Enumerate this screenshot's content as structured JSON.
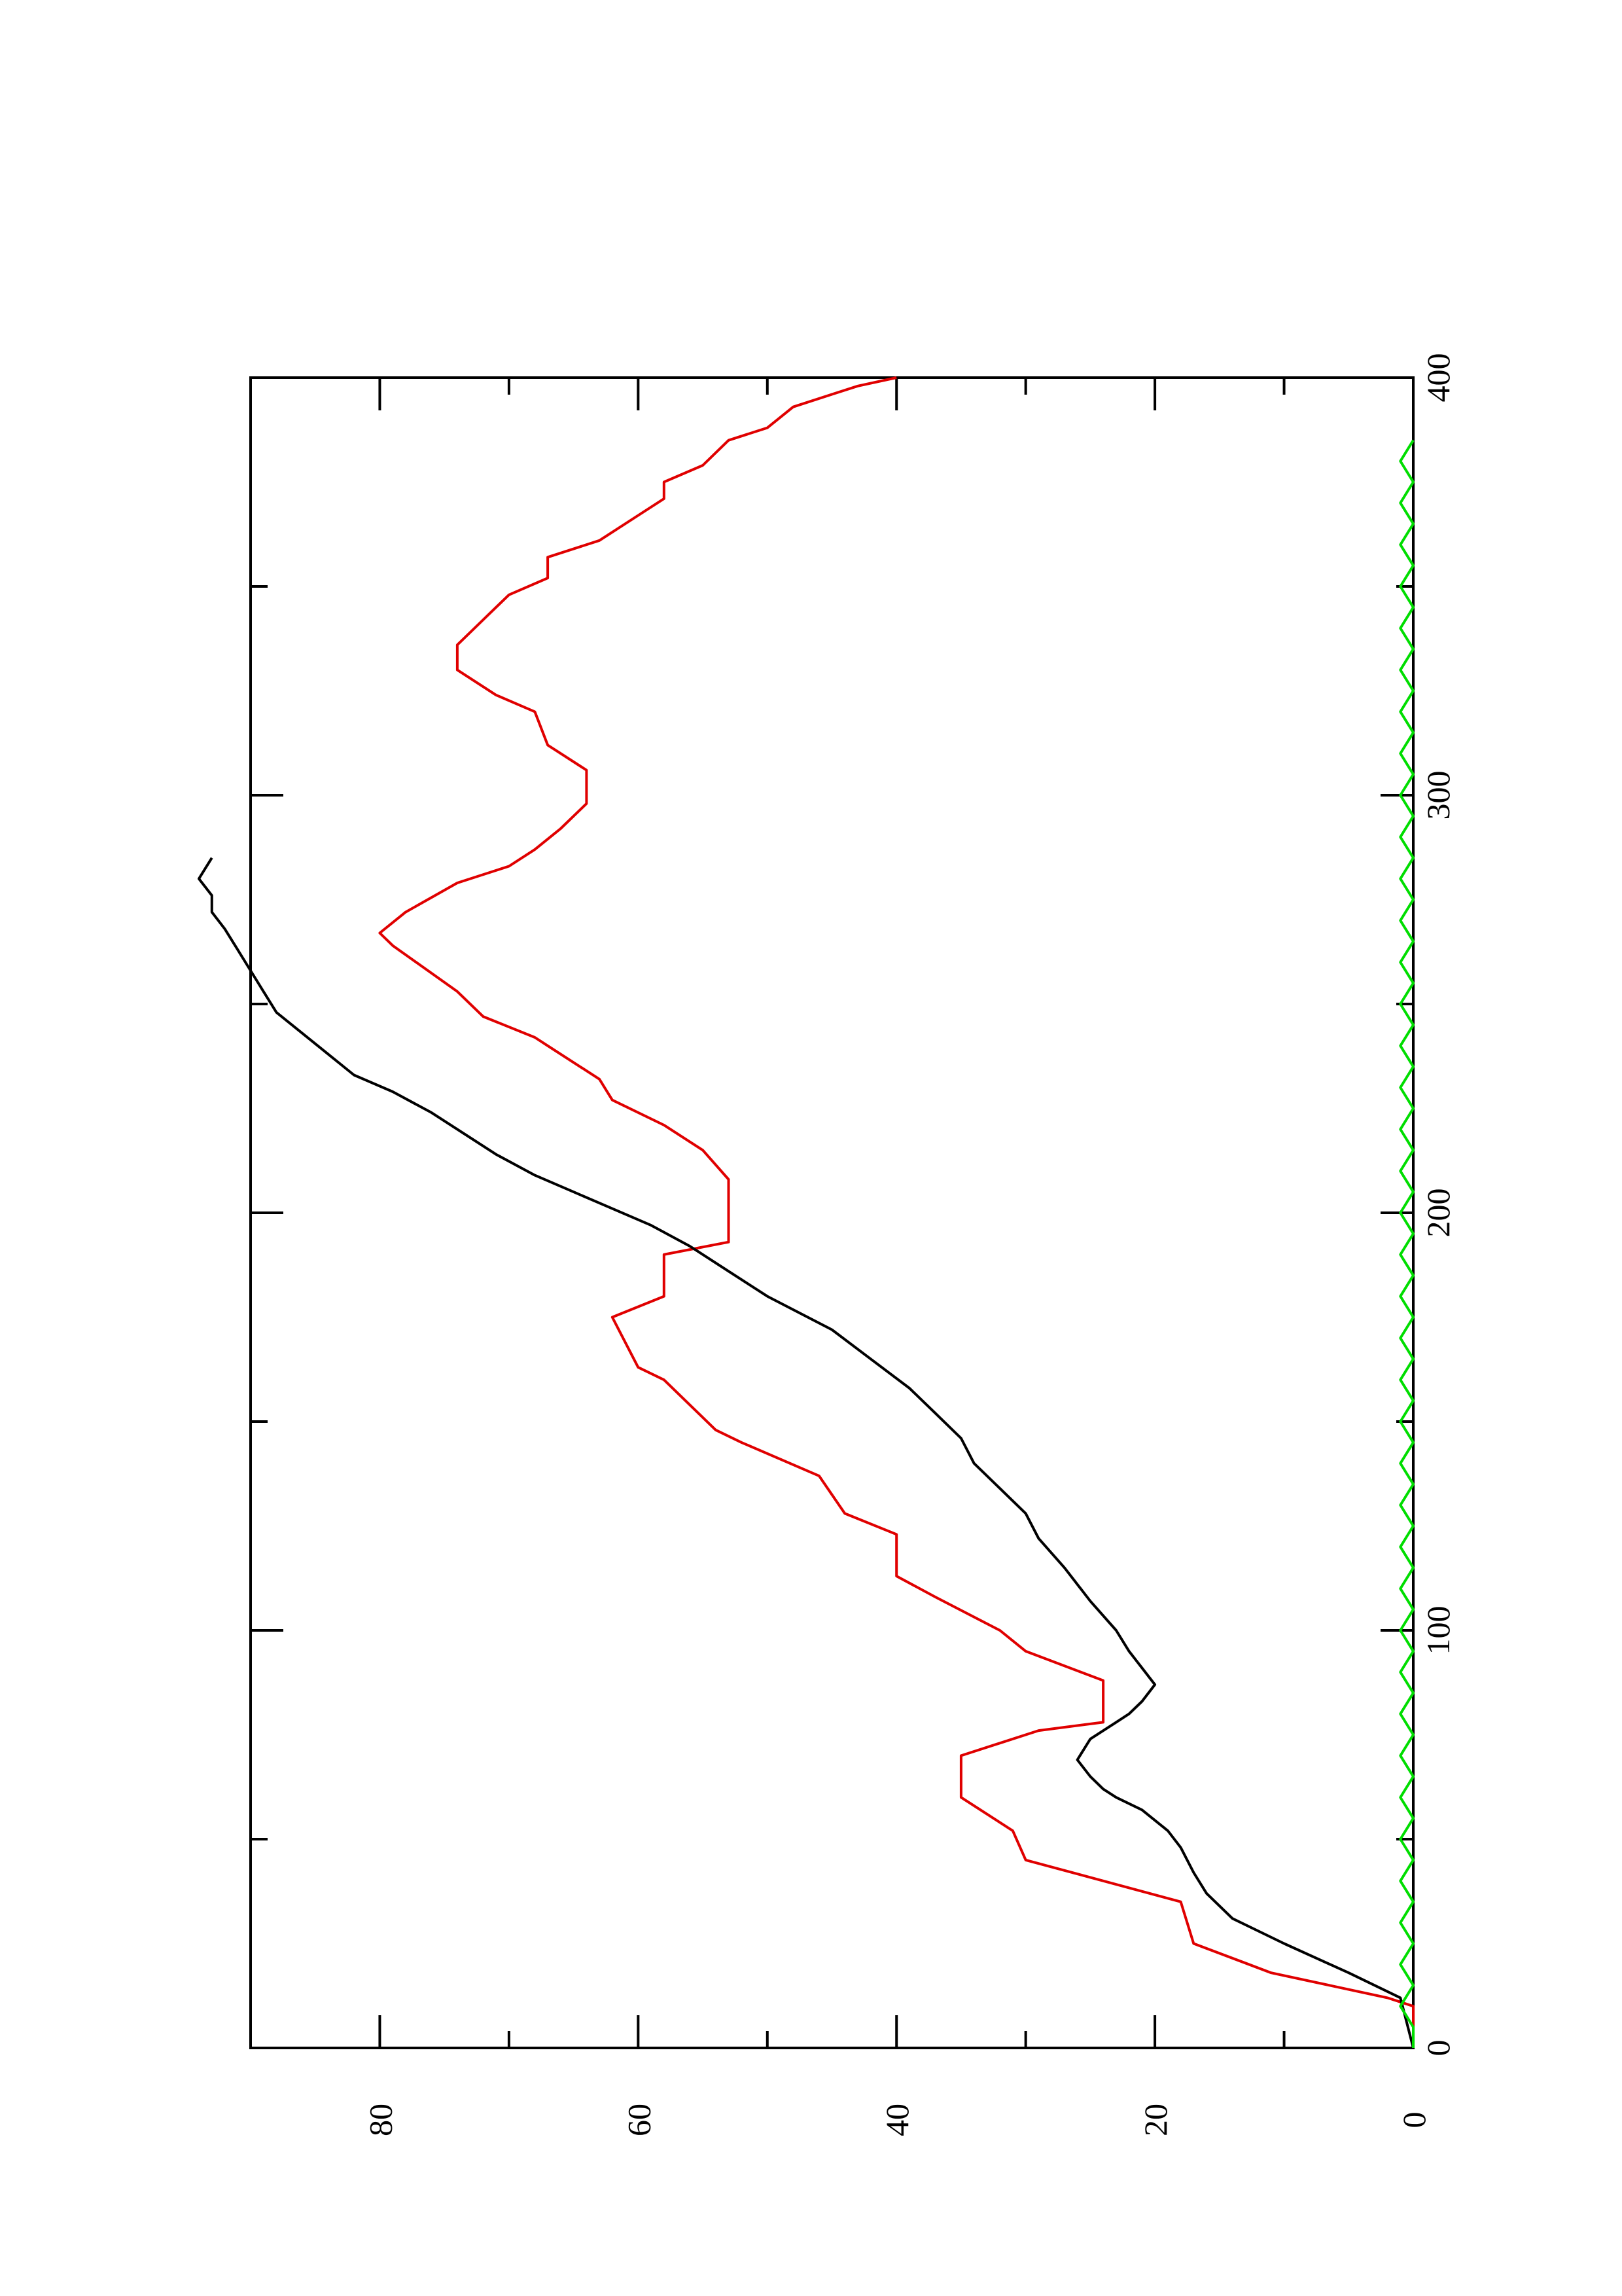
{
  "chart_data": {
    "type": "line",
    "orientation": "rotated 90 degrees counter-clockwise",
    "title": "",
    "xlabel": "",
    "ylabel": "",
    "xlim": [
      0,
      400
    ],
    "ylim": [
      0,
      90
    ],
    "x_ticks": [
      0,
      100,
      200,
      300,
      400
    ],
    "y_ticks": [
      0,
      20,
      40,
      60,
      80
    ],
    "x_minor_ticks": [
      50,
      150,
      250,
      350
    ],
    "y_minor_ticks": [
      10,
      30,
      50,
      70
    ],
    "grid": false,
    "legend": "none",
    "series": [
      {
        "color": "#e00000",
        "points": [
          [
            0,
            0
          ],
          [
            10,
            0
          ],
          [
            12,
            2
          ],
          [
            18,
            11
          ],
          [
            25,
            17
          ],
          [
            35,
            18
          ],
          [
            45,
            30
          ],
          [
            52,
            31
          ],
          [
            60,
            35
          ],
          [
            70,
            35
          ],
          [
            76,
            29
          ],
          [
            78,
            24
          ],
          [
            88,
            24
          ],
          [
            95,
            30
          ],
          [
            100,
            32
          ],
          [
            108,
            37
          ],
          [
            113,
            40
          ],
          [
            123,
            40
          ],
          [
            128,
            44
          ],
          [
            137,
            46
          ],
          [
            145,
            52
          ],
          [
            148,
            54
          ],
          [
            160,
            58
          ],
          [
            163,
            60
          ],
          [
            175,
            62
          ],
          [
            180,
            58
          ],
          [
            190,
            58
          ],
          [
            193,
            53
          ],
          [
            206,
            53
          ],
          [
            208,
            53
          ],
          [
            215,
            55
          ],
          [
            221,
            58
          ],
          [
            227,
            62
          ],
          [
            232,
            63
          ],
          [
            240,
            67
          ],
          [
            242,
            68
          ],
          [
            247,
            72
          ],
          [
            253,
            74
          ],
          [
            264,
            79
          ],
          [
            267,
            80
          ],
          [
            272,
            78
          ],
          [
            279,
            74
          ],
          [
            283,
            70
          ],
          [
            287,
            68
          ],
          [
            292,
            66
          ],
          [
            298,
            64
          ],
          [
            306,
            64
          ],
          [
            312,
            67
          ],
          [
            320,
            68
          ],
          [
            324,
            71
          ],
          [
            330,
            74
          ],
          [
            336,
            74
          ],
          [
            342,
            72
          ],
          [
            348,
            70
          ],
          [
            352,
            67
          ],
          [
            357,
            67
          ],
          [
            361,
            63
          ],
          [
            367,
            60
          ],
          [
            371,
            58
          ],
          [
            375,
            58
          ],
          [
            379,
            55
          ],
          [
            385,
            53
          ],
          [
            388,
            50
          ],
          [
            393,
            48
          ],
          [
            396,
            45
          ],
          [
            398,
            43
          ],
          [
            400,
            40
          ]
        ]
      },
      {
        "color": "#000000",
        "points": [
          [
            0,
            0
          ],
          [
            12,
            1
          ],
          [
            18,
            5
          ],
          [
            25,
            10
          ],
          [
            31,
            14
          ],
          [
            37,
            16
          ],
          [
            42,
            17
          ],
          [
            48,
            18
          ],
          [
            52,
            19
          ],
          [
            57,
            21
          ],
          [
            60,
            23
          ],
          [
            62,
            24
          ],
          [
            65,
            25
          ],
          [
            69,
            26
          ],
          [
            74,
            25
          ],
          [
            78,
            23
          ],
          [
            80,
            22
          ],
          [
            83,
            21
          ],
          [
            87,
            20
          ],
          [
            91,
            21
          ],
          [
            95,
            22
          ],
          [
            100,
            23
          ],
          [
            107,
            25
          ],
          [
            115,
            27
          ],
          [
            122,
            29
          ],
          [
            128,
            30
          ],
          [
            134,
            32
          ],
          [
            140,
            34
          ],
          [
            146,
            35
          ],
          [
            152,
            37
          ],
          [
            158,
            39
          ],
          [
            165,
            42
          ],
          [
            172,
            45
          ],
          [
            180,
            50
          ],
          [
            186,
            53
          ],
          [
            192,
            56
          ],
          [
            197,
            59
          ],
          [
            201,
            62
          ],
          [
            205,
            65
          ],
          [
            209,
            68
          ],
          [
            214,
            71
          ],
          [
            220,
            74
          ],
          [
            224,
            76
          ],
          [
            229,
            79
          ],
          [
            233,
            82
          ],
          [
            238,
            84
          ],
          [
            243,
            86
          ],
          [
            248,
            88
          ],
          [
            253,
            89
          ],
          [
            258,
            90
          ],
          [
            263,
            91
          ],
          [
            268,
            92
          ],
          [
            272,
            93
          ],
          [
            276,
            93
          ],
          [
            280,
            94
          ],
          [
            285,
            93
          ]
        ]
      },
      {
        "color": "#00dd00",
        "points": [
          [
            0,
            0
          ],
          [
            5,
            0
          ],
          [
            10,
            1
          ],
          [
            15,
            0
          ],
          [
            20,
            1
          ],
          [
            25,
            0
          ],
          [
            30,
            1
          ],
          [
            35,
            0
          ],
          [
            40,
            1
          ],
          [
            45,
            0
          ],
          [
            50,
            1
          ],
          [
            55,
            0
          ],
          [
            60,
            1
          ],
          [
            65,
            0
          ],
          [
            70,
            1
          ],
          [
            75,
            0
          ],
          [
            80,
            1
          ],
          [
            85,
            0
          ],
          [
            90,
            1
          ],
          [
            95,
            0
          ],
          [
            100,
            1
          ],
          [
            105,
            0
          ],
          [
            110,
            1
          ],
          [
            115,
            0
          ],
          [
            120,
            1
          ],
          [
            125,
            0
          ],
          [
            130,
            1
          ],
          [
            135,
            0
          ],
          [
            140,
            1
          ],
          [
            145,
            0
          ],
          [
            150,
            1
          ],
          [
            155,
            0
          ],
          [
            160,
            1
          ],
          [
            165,
            0
          ],
          [
            170,
            1
          ],
          [
            175,
            0
          ],
          [
            180,
            1
          ],
          [
            185,
            0
          ],
          [
            190,
            1
          ],
          [
            195,
            0
          ],
          [
            200,
            1
          ],
          [
            205,
            0
          ],
          [
            210,
            1
          ],
          [
            215,
            0
          ],
          [
            220,
            1
          ],
          [
            225,
            0
          ],
          [
            230,
            1
          ],
          [
            235,
            0
          ],
          [
            240,
            1
          ],
          [
            245,
            0
          ],
          [
            250,
            1
          ],
          [
            255,
            0
          ],
          [
            260,
            1
          ],
          [
            265,
            0
          ],
          [
            270,
            1
          ],
          [
            275,
            0
          ],
          [
            280,
            1
          ],
          [
            285,
            0
          ],
          [
            290,
            1
          ],
          [
            295,
            0
          ],
          [
            300,
            1
          ],
          [
            305,
            0
          ],
          [
            310,
            1
          ],
          [
            315,
            0
          ],
          [
            320,
            1
          ],
          [
            325,
            0
          ],
          [
            330,
            1
          ],
          [
            335,
            0
          ],
          [
            340,
            1
          ],
          [
            345,
            0
          ],
          [
            350,
            1
          ],
          [
            355,
            0
          ],
          [
            360,
            1
          ],
          [
            365,
            0
          ],
          [
            370,
            1
          ],
          [
            375,
            0
          ],
          [
            380,
            1
          ],
          [
            385,
            0
          ]
        ]
      }
    ]
  }
}
